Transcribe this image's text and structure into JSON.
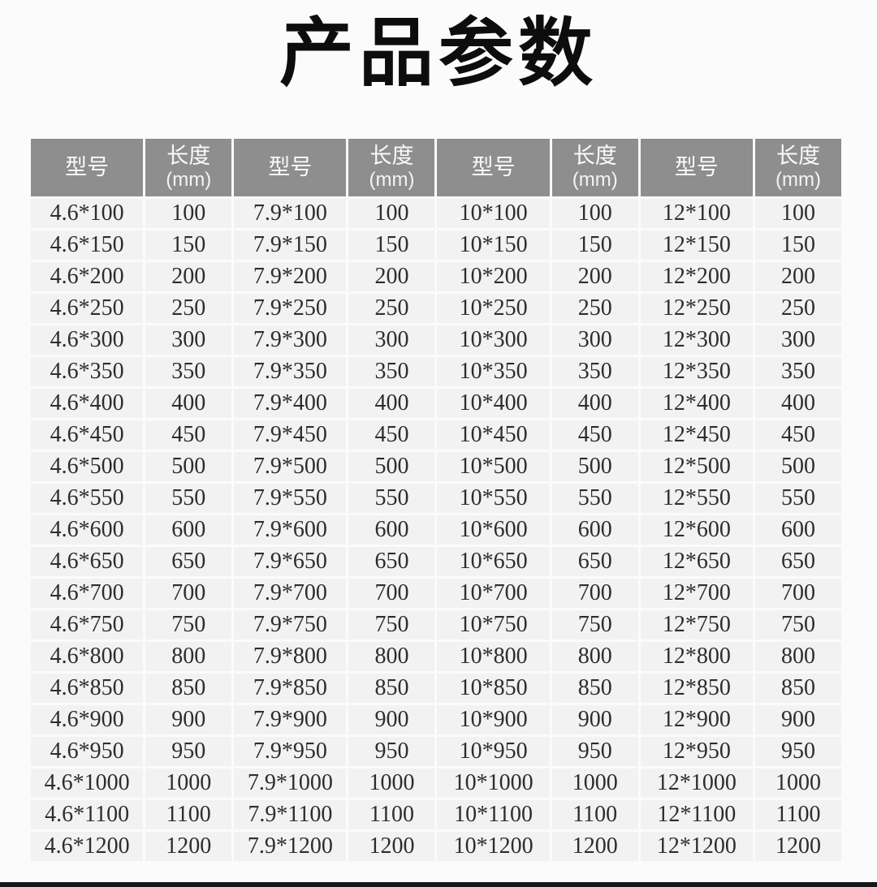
{
  "page": {
    "title": "产品参数",
    "background": "#fbfbfb",
    "bottom_bar_color": "#14161a"
  },
  "table": {
    "header_bg": "#8e8e8e",
    "header_text_color": "#fafafa",
    "cell_bg": "#f2f2f2",
    "cell_text_color": "#2d2d2d",
    "columns": [
      {
        "type": "model",
        "title": "型号",
        "unit": ""
      },
      {
        "type": "length",
        "title": "长度",
        "unit": "(mm)"
      },
      {
        "type": "model",
        "title": "型号",
        "unit": ""
      },
      {
        "type": "length",
        "title": "长度",
        "unit": "(mm)"
      },
      {
        "type": "model",
        "title": "型号",
        "unit": ""
      },
      {
        "type": "length",
        "title": "长度",
        "unit": "(mm)"
      },
      {
        "type": "model",
        "title": "型号",
        "unit": ""
      },
      {
        "type": "length",
        "title": "长度",
        "unit": "(mm)"
      }
    ],
    "series_prefixes": [
      "4.6",
      "7.9",
      "10",
      "12"
    ],
    "lengths_mm": [
      100,
      150,
      200,
      250,
      300,
      350,
      400,
      450,
      500,
      550,
      600,
      650,
      700,
      750,
      800,
      850,
      900,
      950,
      1000,
      1100,
      1200
    ],
    "rows": [
      [
        "4.6*100",
        "100",
        "7.9*100",
        "100",
        "10*100",
        "100",
        "12*100",
        "100"
      ],
      [
        "4.6*150",
        "150",
        "7.9*150",
        "150",
        "10*150",
        "150",
        "12*150",
        "150"
      ],
      [
        "4.6*200",
        "200",
        "7.9*200",
        "200",
        "10*200",
        "200",
        "12*200",
        "200"
      ],
      [
        "4.6*250",
        "250",
        "7.9*250",
        "250",
        "10*250",
        "250",
        "12*250",
        "250"
      ],
      [
        "4.6*300",
        "300",
        "7.9*300",
        "300",
        "10*300",
        "300",
        "12*300",
        "300"
      ],
      [
        "4.6*350",
        "350",
        "7.9*350",
        "350",
        "10*350",
        "350",
        "12*350",
        "350"
      ],
      [
        "4.6*400",
        "400",
        "7.9*400",
        "400",
        "10*400",
        "400",
        "12*400",
        "400"
      ],
      [
        "4.6*450",
        "450",
        "7.9*450",
        "450",
        "10*450",
        "450",
        "12*450",
        "450"
      ],
      [
        "4.6*500",
        "500",
        "7.9*500",
        "500",
        "10*500",
        "500",
        "12*500",
        "500"
      ],
      [
        "4.6*550",
        "550",
        "7.9*550",
        "550",
        "10*550",
        "550",
        "12*550",
        "550"
      ],
      [
        "4.6*600",
        "600",
        "7.9*600",
        "600",
        "10*600",
        "600",
        "12*600",
        "600"
      ],
      [
        "4.6*650",
        "650",
        "7.9*650",
        "650",
        "10*650",
        "650",
        "12*650",
        "650"
      ],
      [
        "4.6*700",
        "700",
        "7.9*700",
        "700",
        "10*700",
        "700",
        "12*700",
        "700"
      ],
      [
        "4.6*750",
        "750",
        "7.9*750",
        "750",
        "10*750",
        "750",
        "12*750",
        "750"
      ],
      [
        "4.6*800",
        "800",
        "7.9*800",
        "800",
        "10*800",
        "800",
        "12*800",
        "800"
      ],
      [
        "4.6*850",
        "850",
        "7.9*850",
        "850",
        "10*850",
        "850",
        "12*850",
        "850"
      ],
      [
        "4.6*900",
        "900",
        "7.9*900",
        "900",
        "10*900",
        "900",
        "12*900",
        "900"
      ],
      [
        "4.6*950",
        "950",
        "7.9*950",
        "950",
        "10*950",
        "950",
        "12*950",
        "950"
      ],
      [
        "4.6*1000",
        "1000",
        "7.9*1000",
        "1000",
        "10*1000",
        "1000",
        "12*1000",
        "1000"
      ],
      [
        "4.6*1100",
        "1100",
        "7.9*1100",
        "1100",
        "10*1100",
        "1100",
        "12*1100",
        "1100"
      ],
      [
        "4.6*1200",
        "1200",
        "7.9*1200",
        "1200",
        "10*1200",
        "1200",
        "12*1200",
        "1200"
      ]
    ]
  }
}
